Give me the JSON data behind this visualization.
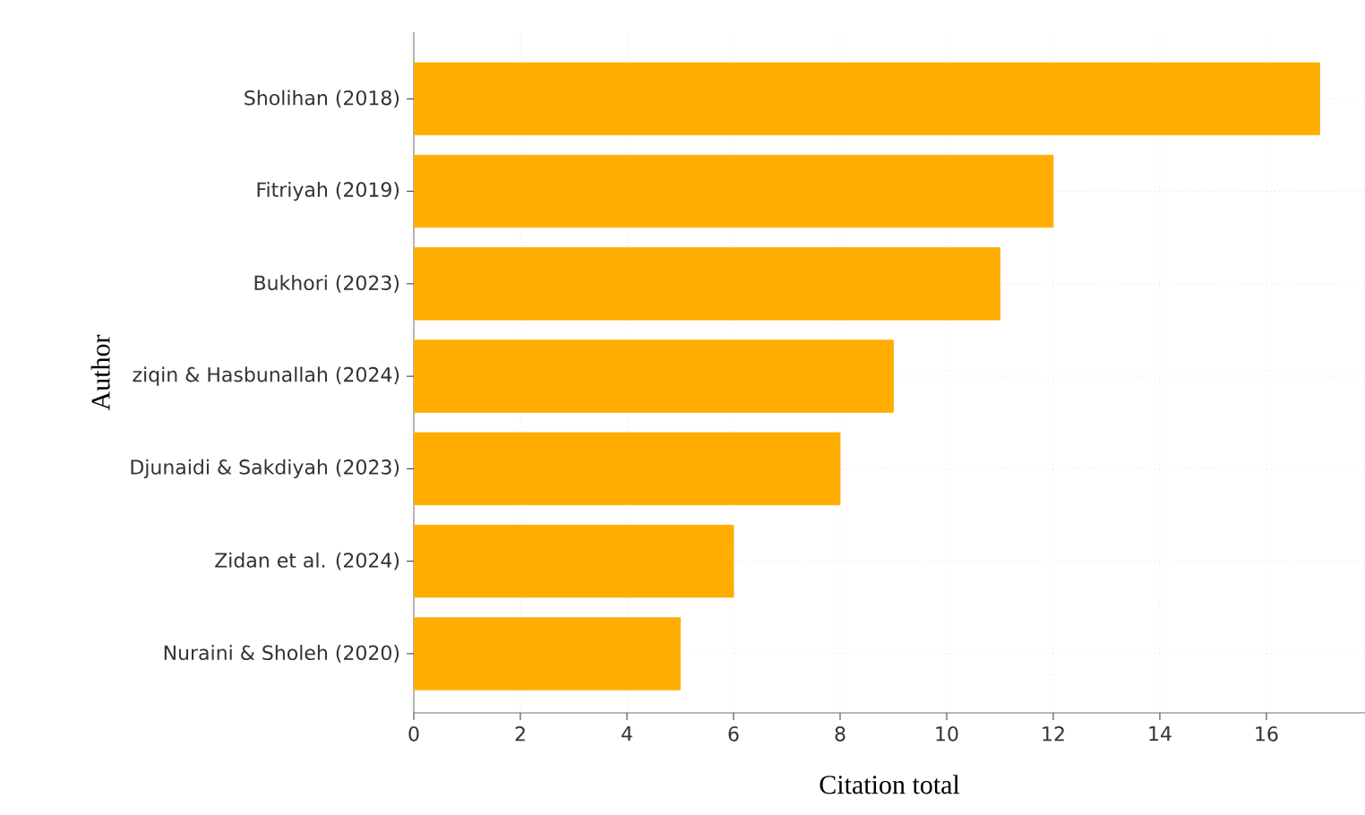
{
  "chart_data": {
    "type": "bar",
    "orientation": "horizontal",
    "xlabel": "Citation total",
    "ylabel": "Author",
    "categories": [
      "Sholihan (2018)",
      "Fitriyah (2019)",
      "Bukhori (2023)",
      "ziqin & Hasbunallah (2024)",
      "Djunaidi & Sakdiyah (2023)",
      "Zidan et al. (2024)",
      "Nuraini & Sholeh (2020)"
    ],
    "values": [
      17,
      12,
      11,
      9,
      8,
      6,
      5
    ],
    "color": "#ffad00",
    "xlim": [
      0,
      17.85
    ],
    "xticks": [
      0,
      2,
      4,
      6,
      8,
      10,
      12,
      14,
      16
    ],
    "grid": true
  }
}
